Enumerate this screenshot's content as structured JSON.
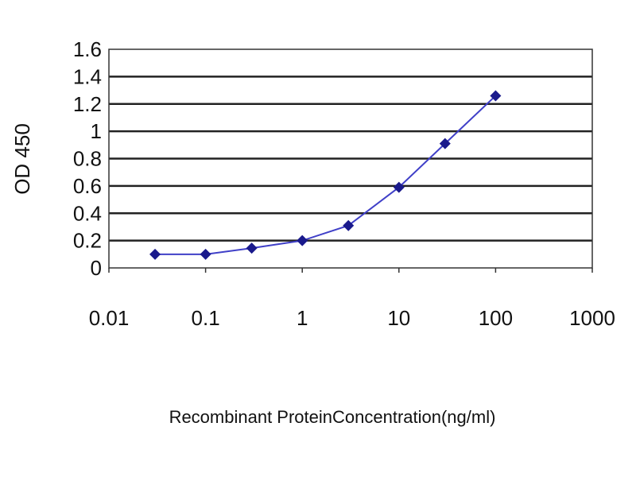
{
  "chart_data": {
    "type": "line",
    "title": "",
    "xlabel": "Recombinant ProteinConcentration(ng/ml)",
    "ylabel": "OD 450",
    "x_scale": "log",
    "xlim": [
      0.01,
      1000
    ],
    "ylim": [
      0,
      1.6
    ],
    "x_ticks": [
      "0.01",
      "0.1",
      "1",
      "10",
      "100",
      "1000"
    ],
    "x_tick_values": [
      0.01,
      0.1,
      1,
      10,
      100,
      1000
    ],
    "y_ticks": [
      "0",
      "0.2",
      "0.4",
      "0.6",
      "0.8",
      "1",
      "1.2",
      "1.4",
      "1.6"
    ],
    "y_tick_values": [
      0,
      0.2,
      0.4,
      0.6,
      0.8,
      1,
      1.2,
      1.4,
      1.6
    ],
    "grid": "horizontal",
    "series": [
      {
        "x": [
          0.03,
          0.1,
          0.3,
          1,
          3,
          10,
          30,
          100
        ],
        "y": [
          0.1,
          0.1,
          0.145,
          0.2,
          0.31,
          0.59,
          0.91,
          1.26
        ],
        "marker": "diamond",
        "color": "#1a1a8c",
        "line_color": "#4040c8"
      }
    ]
  }
}
